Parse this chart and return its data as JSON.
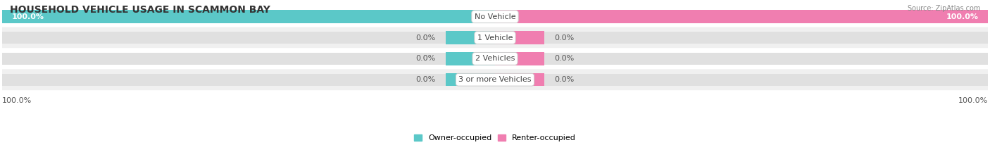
{
  "title": "HOUSEHOLD VEHICLE USAGE IN SCAMMON BAY",
  "source": "Source: ZipAtlas.com",
  "categories": [
    "No Vehicle",
    "1 Vehicle",
    "2 Vehicles",
    "3 or more Vehicles"
  ],
  "owner_values": [
    100.0,
    0.0,
    0.0,
    0.0
  ],
  "renter_values": [
    100.0,
    0.0,
    0.0,
    0.0
  ],
  "owner_color": "#5BC8C8",
  "renter_color": "#F07EB0",
  "bar_bg_light": "#F5F5F5",
  "bar_bg_dark": "#EBEBEB",
  "row_bg_white": "#FFFFFF",
  "row_bg_gray": "#F0F0F0",
  "title_fontsize": 10,
  "label_fontsize": 8,
  "source_fontsize": 7,
  "category_fontsize": 8,
  "min_bar_width": 12,
  "figsize": [
    14.06,
    2.33
  ],
  "dpi": 100,
  "footer_value_left": "100.0%",
  "footer_value_right": "100.0%"
}
